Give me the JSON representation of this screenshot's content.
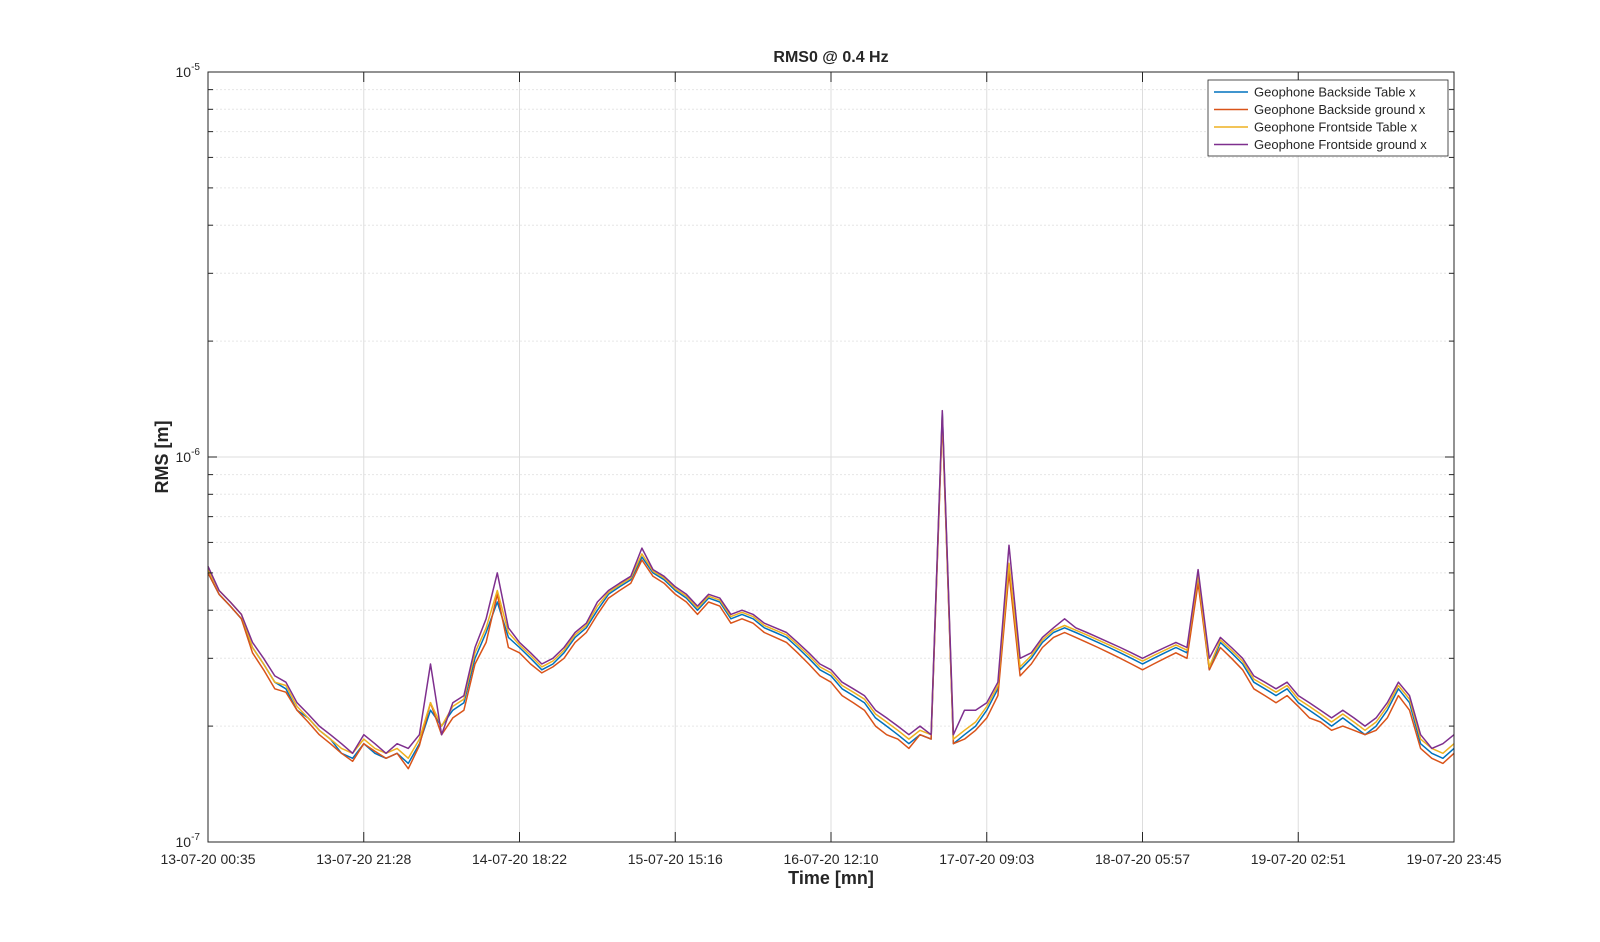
{
  "chart_data": {
    "type": "line",
    "title": "RMS0 @ 0.4 Hz",
    "xlabel": "Time [mn]",
    "ylabel": "RMS [m]",
    "y_scale": "log",
    "ylim": [
      1e-07,
      1e-05
    ],
    "xlim": [
      "13-07-20 00:35",
      "19-07-20 23:45"
    ],
    "x_ticks": [
      "13-07-20 00:35",
      "13-07-20 21:28",
      "14-07-20 18:22",
      "15-07-20 15:16",
      "16-07-20 12:10",
      "17-07-20 09:03",
      "18-07-20 05:57",
      "19-07-20 02:51",
      "19-07-20 23:45"
    ],
    "y_ticks": [
      {
        "base": "10",
        "exp": "-7",
        "value": 1e-07
      },
      {
        "base": "10",
        "exp": "-6",
        "value": 1e-06
      },
      {
        "base": "10",
        "exp": "-5",
        "value": 1e-05
      }
    ],
    "grid": true,
    "legend_position": "top-right",
    "series_colors": [
      "#0072BD",
      "#D95319",
      "#EDB120",
      "#7E2F8E"
    ],
    "series": [
      {
        "name": "Geophone Backside Table x",
        "color": "#0072BD",
        "values": [
          5e-07,
          4.4e-07,
          4.1e-07,
          3.8e-07,
          3.2e-07,
          2.9e-07,
          2.6e-07,
          2.5e-07,
          2.2e-07,
          2.1e-07,
          1.95e-07,
          1.85e-07,
          1.7e-07,
          1.65e-07,
          1.8e-07,
          1.7e-07,
          1.65e-07,
          1.7e-07,
          1.6e-07,
          1.8e-07,
          2.2e-07,
          2e-07,
          2.2e-07,
          2.3e-07,
          3e-07,
          3.5e-07,
          4.2e-07,
          3.4e-07,
          3.2e-07,
          3e-07,
          2.8e-07,
          2.9e-07,
          3.1e-07,
          3.4e-07,
          3.6e-07,
          4e-07,
          4.4e-07,
          4.6e-07,
          4.8e-07,
          5.5e-07,
          5e-07,
          4.8e-07,
          4.5e-07,
          4.3e-07,
          4e-07,
          4.3e-07,
          4.2e-07,
          3.8e-07,
          3.9e-07,
          3.8e-07,
          3.6e-07,
          3.5e-07,
          3.4e-07,
          3.2e-07,
          3e-07,
          2.8e-07,
          2.7e-07,
          2.5e-07,
          2.4e-07,
          2.3e-07,
          2.1e-07,
          2e-07,
          1.9e-07,
          1.8e-07,
          1.9e-07,
          1.85e-07,
          1.3e-06,
          1.8e-07,
          1.9e-07,
          2e-07,
          2.2e-07,
          2.5e-07,
          5.2e-07,
          2.8e-07,
          3e-07,
          3.3e-07,
          3.5e-07,
          3.6e-07,
          3.5e-07,
          3.4e-07,
          3.3e-07,
          3.2e-07,
          3.1e-07,
          3e-07,
          2.9e-07,
          3e-07,
          3.1e-07,
          3.2e-07,
          3.1e-07,
          4.9e-07,
          2.8e-07,
          3.3e-07,
          3.1e-07,
          2.9e-07,
          2.6e-07,
          2.5e-07,
          2.4e-07,
          2.5e-07,
          2.3e-07,
          2.2e-07,
          2.1e-07,
          2e-07,
          2.1e-07,
          2e-07,
          1.9e-07,
          2e-07,
          2.2e-07,
          2.5e-07,
          2.3e-07,
          1.8e-07,
          1.7e-07,
          1.65e-07,
          1.75e-07
        ]
      },
      {
        "name": "Geophone Backside ground x",
        "color": "#D95319",
        "values": [
          5e-07,
          4.4e-07,
          4.1e-07,
          3.8e-07,
          3.1e-07,
          2.8e-07,
          2.5e-07,
          2.45e-07,
          2.2e-07,
          2.05e-07,
          1.9e-07,
          1.8e-07,
          1.7e-07,
          1.62e-07,
          1.8e-07,
          1.72e-07,
          1.65e-07,
          1.7e-07,
          1.55e-07,
          1.78e-07,
          2.3e-07,
          1.9e-07,
          2.1e-07,
          2.2e-07,
          2.9e-07,
          3.3e-07,
          4.4e-07,
          3.2e-07,
          3.1e-07,
          2.9e-07,
          2.75e-07,
          2.85e-07,
          3e-07,
          3.3e-07,
          3.5e-07,
          3.9e-07,
          4.3e-07,
          4.5e-07,
          4.7e-07,
          5.4e-07,
          4.9e-07,
          4.7e-07,
          4.4e-07,
          4.2e-07,
          3.9e-07,
          4.2e-07,
          4.1e-07,
          3.7e-07,
          3.8e-07,
          3.7e-07,
          3.5e-07,
          3.4e-07,
          3.3e-07,
          3.1e-07,
          2.9e-07,
          2.7e-07,
          2.6e-07,
          2.4e-07,
          2.3e-07,
          2.2e-07,
          2e-07,
          1.9e-07,
          1.85e-07,
          1.75e-07,
          1.9e-07,
          1.85e-07,
          1.25e-06,
          1.8e-07,
          1.85e-07,
          1.95e-07,
          2.1e-07,
          2.4e-07,
          5e-07,
          2.7e-07,
          2.9e-07,
          3.2e-07,
          3.4e-07,
          3.5e-07,
          3.4e-07,
          3.3e-07,
          3.2e-07,
          3.1e-07,
          3e-07,
          2.9e-07,
          2.8e-07,
          2.9e-07,
          3e-07,
          3.1e-07,
          3e-07,
          4.7e-07,
          2.8e-07,
          3.2e-07,
          3e-07,
          2.8e-07,
          2.5e-07,
          2.4e-07,
          2.3e-07,
          2.4e-07,
          2.25e-07,
          2.1e-07,
          2.05e-07,
          1.95e-07,
          2e-07,
          1.95e-07,
          1.9e-07,
          1.95e-07,
          2.1e-07,
          2.4e-07,
          2.2e-07,
          1.75e-07,
          1.65e-07,
          1.6e-07,
          1.7e-07
        ]
      },
      {
        "name": "Geophone Frontside Table x",
        "color": "#EDB120",
        "values": [
          5.1e-07,
          4.5e-07,
          4.2e-07,
          3.9e-07,
          3.2e-07,
          2.9e-07,
          2.6e-07,
          2.55e-07,
          2.25e-07,
          2.1e-07,
          1.95e-07,
          1.85e-07,
          1.75e-07,
          1.7e-07,
          1.85e-07,
          1.75e-07,
          1.7e-07,
          1.75e-07,
          1.65e-07,
          1.85e-07,
          2.3e-07,
          2e-07,
          2.25e-07,
          2.35e-07,
          3.1e-07,
          3.6e-07,
          4.5e-07,
          3.5e-07,
          3.25e-07,
          3.05e-07,
          2.85e-07,
          2.95e-07,
          3.15e-07,
          3.45e-07,
          3.65e-07,
          4.1e-07,
          4.45e-07,
          4.65e-07,
          4.85e-07,
          5.6e-07,
          5.05e-07,
          4.85e-07,
          4.55e-07,
          4.35e-07,
          4.05e-07,
          4.35e-07,
          4.25e-07,
          3.85e-07,
          3.95e-07,
          3.85e-07,
          3.65e-07,
          3.55e-07,
          3.45e-07,
          3.25e-07,
          3.05e-07,
          2.85e-07,
          2.75e-07,
          2.55e-07,
          2.45e-07,
          2.35e-07,
          2.15e-07,
          2.05e-07,
          1.95e-07,
          1.85e-07,
          1.95e-07,
          1.9e-07,
          1.28e-06,
          1.85e-07,
          1.95e-07,
          2.05e-07,
          2.25e-07,
          2.55e-07,
          5.3e-07,
          2.85e-07,
          3.05e-07,
          3.35e-07,
          3.55e-07,
          3.65e-07,
          3.55e-07,
          3.45e-07,
          3.35e-07,
          3.25e-07,
          3.15e-07,
          3.05e-07,
          2.95e-07,
          3.05e-07,
          3.15e-07,
          3.25e-07,
          3.15e-07,
          4.95e-07,
          2.85e-07,
          3.35e-07,
          3.15e-07,
          2.95e-07,
          2.65e-07,
          2.55e-07,
          2.45e-07,
          2.55e-07,
          2.35e-07,
          2.25e-07,
          2.15e-07,
          2.05e-07,
          2.15e-07,
          2.05e-07,
          1.95e-07,
          2.05e-07,
          2.25e-07,
          2.55e-07,
          2.35e-07,
          1.85e-07,
          1.75e-07,
          1.7e-07,
          1.8e-07
        ]
      },
      {
        "name": "Geophone Frontside ground x",
        "color": "#7E2F8E",
        "values": [
          5.2e-07,
          4.5e-07,
          4.2e-07,
          3.9e-07,
          3.3e-07,
          3e-07,
          2.7e-07,
          2.6e-07,
          2.3e-07,
          2.15e-07,
          2e-07,
          1.9e-07,
          1.8e-07,
          1.7e-07,
          1.9e-07,
          1.8e-07,
          1.7e-07,
          1.8e-07,
          1.75e-07,
          1.9e-07,
          2.9e-07,
          1.9e-07,
          2.3e-07,
          2.4e-07,
          3.2e-07,
          3.8e-07,
          5e-07,
          3.6e-07,
          3.3e-07,
          3.1e-07,
          2.9e-07,
          3e-07,
          3.2e-07,
          3.5e-07,
          3.7e-07,
          4.2e-07,
          4.5e-07,
          4.7e-07,
          4.9e-07,
          5.8e-07,
          5.1e-07,
          4.9e-07,
          4.6e-07,
          4.4e-07,
          4.1e-07,
          4.4e-07,
          4.3e-07,
          3.9e-07,
          4e-07,
          3.9e-07,
          3.7e-07,
          3.6e-07,
          3.5e-07,
          3.3e-07,
          3.1e-07,
          2.9e-07,
          2.8e-07,
          2.6e-07,
          2.5e-07,
          2.4e-07,
          2.2e-07,
          2.1e-07,
          2e-07,
          1.9e-07,
          2e-07,
          1.9e-07,
          1.32e-06,
          1.9e-07,
          2.2e-07,
          2.2e-07,
          2.3e-07,
          2.6e-07,
          5.9e-07,
          3e-07,
          3.1e-07,
          3.4e-07,
          3.6e-07,
          3.8e-07,
          3.6e-07,
          3.5e-07,
          3.4e-07,
          3.3e-07,
          3.2e-07,
          3.1e-07,
          3e-07,
          3.1e-07,
          3.2e-07,
          3.3e-07,
          3.2e-07,
          5.1e-07,
          3e-07,
          3.4e-07,
          3.2e-07,
          3e-07,
          2.7e-07,
          2.6e-07,
          2.5e-07,
          2.6e-07,
          2.4e-07,
          2.3e-07,
          2.2e-07,
          2.1e-07,
          2.2e-07,
          2.1e-07,
          2e-07,
          2.1e-07,
          2.3e-07,
          2.6e-07,
          2.4e-07,
          1.9e-07,
          1.75e-07,
          1.8e-07,
          1.9e-07
        ]
      }
    ]
  }
}
